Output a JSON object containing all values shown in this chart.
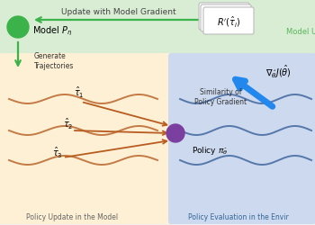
{
  "bg_color": "#f0f0f0",
  "top_panel_color": "#d8edd4",
  "left_panel_color": "#fdf0d5",
  "right_panel_color": "#ccd9ee",
  "model_circle_color": "#3cb34a",
  "policy_circle_color": "#7b3fa0",
  "arrow_color_green": "#3cb34a",
  "arrow_color_blue": "#2288ee",
  "arrow_color_orange": "#b85c20",
  "wave_color_orange": "#c47a45",
  "wave_color_blue": "#5577aa",
  "label_model": "Model $P_{\\eta}$",
  "label_generate": "Generate\nTrajectories",
  "label_tau1": "$\\hat{\\tau}_1$",
  "label_tau2": "$\\hat{\\tau}_2$",
  "label_tau3": "$\\hat{\\tau}_3$",
  "label_policy": "Policy $\\pi_{\\hat{\\theta}}$",
  "label_reward": "$R^{\\prime}(\\hat{\\tau}_i)$",
  "label_similarity": "Similarity of\nPolicy Gradient",
  "label_gradient": "$\\nabla_{\\hat{\\theta}} J(\\hat{\\theta})$",
  "label_left_bottom": "Policy Update in the Model",
  "label_right_bottom": "Policy Evaluation in the Envir",
  "label_model_up": "Model Up",
  "label_update": "Update with Model Gradient",
  "figsize": [
    3.5,
    2.5
  ],
  "dpi": 100
}
